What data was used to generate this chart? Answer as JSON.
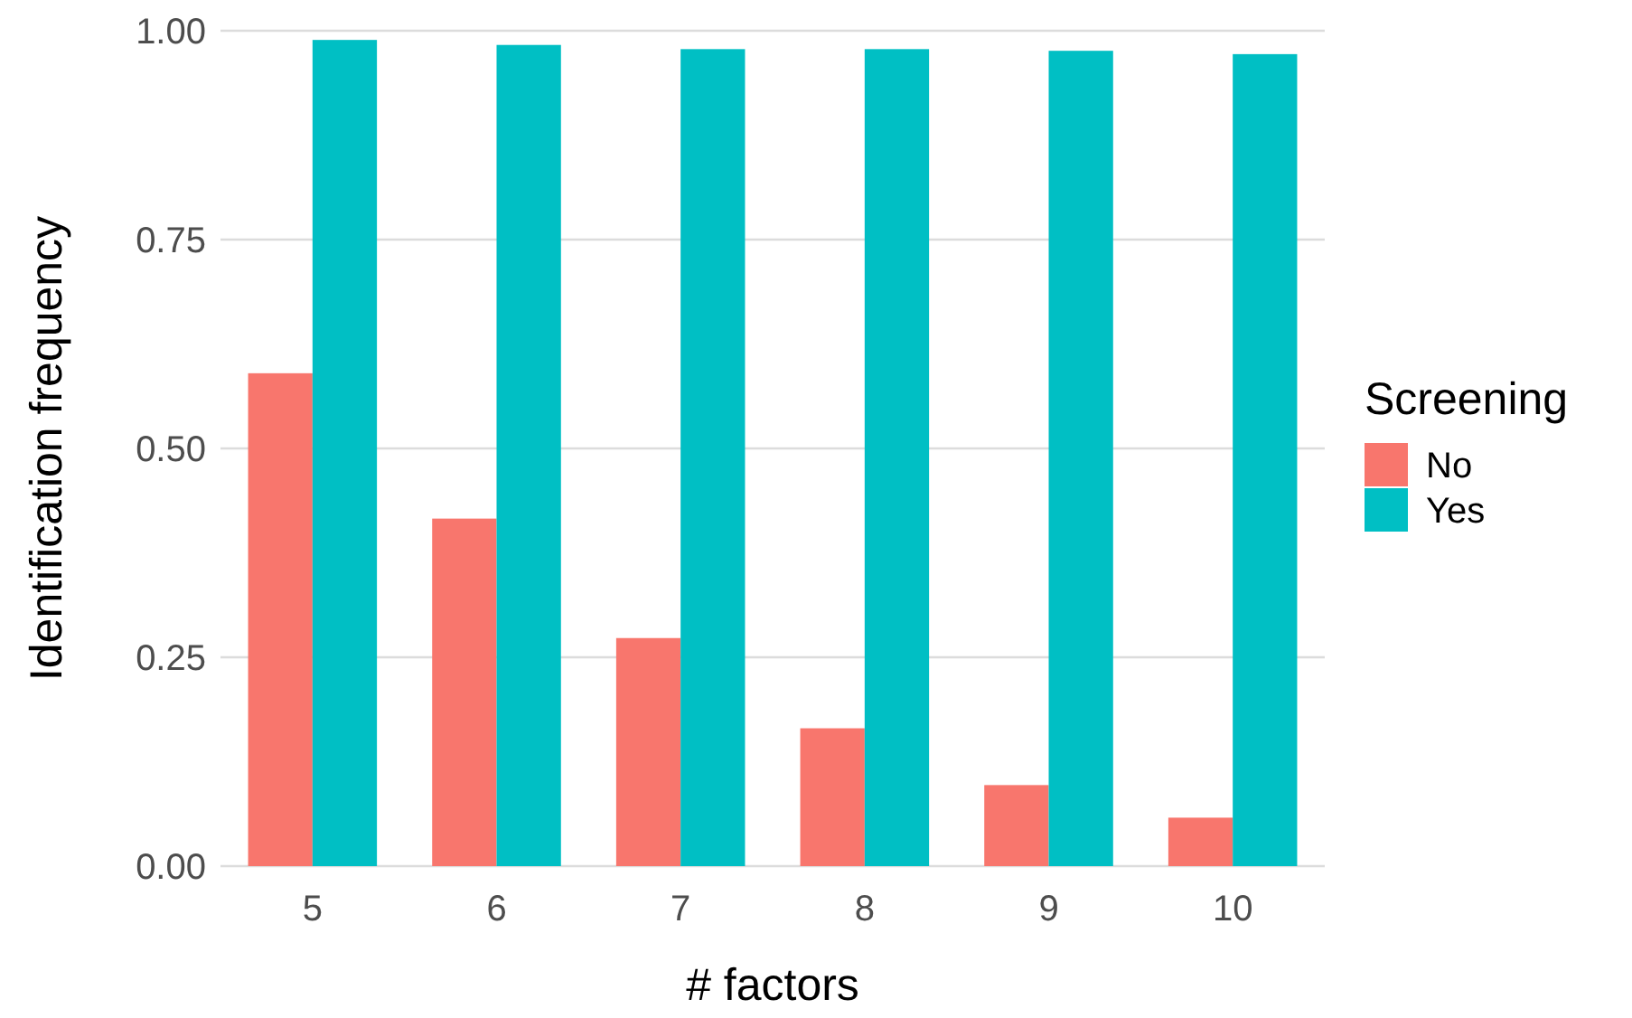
{
  "chart_data": {
    "type": "bar",
    "xlabel": "# factors",
    "ylabel": "Identification frequency",
    "legend_title": "Screening",
    "categories": [
      "5",
      "6",
      "7",
      "8",
      "9",
      "10"
    ],
    "series": [
      {
        "name": "No",
        "color": "#f8766d",
        "values": [
          0.59,
          0.416,
          0.273,
          0.165,
          0.097,
          0.058
        ]
      },
      {
        "name": "Yes",
        "color": "#00bfc4",
        "values": [
          0.989,
          0.983,
          0.978,
          0.978,
          0.976,
          0.972
        ]
      }
    ],
    "ylim": [
      0,
      1.0
    ],
    "yticks": [
      {
        "value": 0,
        "label": "0.00"
      },
      {
        "value": 0.25,
        "label": "0.25"
      },
      {
        "value": 0.5,
        "label": "0.50"
      },
      {
        "value": 0.75,
        "label": "0.75"
      },
      {
        "value": 1,
        "label": "1.00"
      }
    ],
    "grid": "y",
    "legend": "right"
  }
}
